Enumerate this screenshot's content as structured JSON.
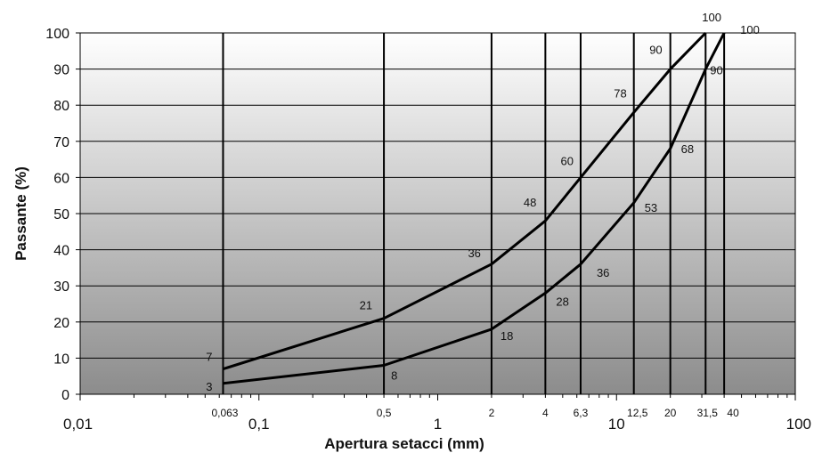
{
  "chart_data": {
    "type": "line",
    "xlabel": "Apertura setacci (mm)",
    "ylabel": "Passante (%)",
    "x_scale": "log",
    "xlim": [
      0.01,
      100
    ],
    "ylim": [
      0,
      100
    ],
    "y_ticks": [
      "0",
      "10",
      "20",
      "30",
      "40",
      "50",
      "60",
      "70",
      "80",
      "90",
      "100"
    ],
    "x_major_ticks": [
      {
        "value": 0.01,
        "label": "0,01"
      },
      {
        "value": 0.1,
        "label": "0,1"
      },
      {
        "value": 1,
        "label": "1"
      },
      {
        "value": 10,
        "label": "10"
      },
      {
        "value": 100,
        "label": "100"
      }
    ],
    "sieves": [
      {
        "value": 0.063,
        "label": "0,063"
      },
      {
        "value": 0.5,
        "label": "0,5"
      },
      {
        "value": 2,
        "label": "2"
      },
      {
        "value": 4,
        "label": "4"
      },
      {
        "value": 6.3,
        "label": "6,3"
      },
      {
        "value": 12.5,
        "label": "12,5"
      },
      {
        "value": 20,
        "label": "20"
      },
      {
        "value": 31.5,
        "label": "31,5"
      },
      {
        "value": 40,
        "label": "40"
      }
    ],
    "series": [
      {
        "points": [
          {
            "x": 0.063,
            "y": 7,
            "label": "7"
          },
          {
            "x": 0.5,
            "y": 21,
            "label": "21"
          },
          {
            "x": 2,
            "y": 36,
            "label": "36"
          },
          {
            "x": 4,
            "y": 48,
            "label": "48"
          },
          {
            "x": 6.3,
            "y": 60,
            "label": "60"
          },
          {
            "x": 12.5,
            "y": 78,
            "label": "78"
          },
          {
            "x": 20,
            "y": 90,
            "label": "90"
          },
          {
            "x": 31.5,
            "y": 100,
            "label": "100"
          }
        ]
      },
      {
        "points": [
          {
            "x": 0.063,
            "y": 3,
            "label": "3"
          },
          {
            "x": 0.5,
            "y": 8,
            "label": "8"
          },
          {
            "x": 2,
            "y": 18,
            "label": "18"
          },
          {
            "x": 4,
            "y": 28,
            "label": "28"
          },
          {
            "x": 6.3,
            "y": 36,
            "label": "36"
          },
          {
            "x": 12.5,
            "y": 53,
            "label": "53"
          },
          {
            "x": 20,
            "y": 68,
            "label": "68"
          },
          {
            "x": 31.5,
            "y": 90,
            "label": "90"
          },
          {
            "x": 40,
            "y": 100,
            "label": "100"
          }
        ]
      }
    ],
    "colors": {
      "line": "#000000",
      "grid": "#000000",
      "bg_top": "#ffffff",
      "bg_bottom": "#8c8c8c"
    },
    "grid": true
  }
}
